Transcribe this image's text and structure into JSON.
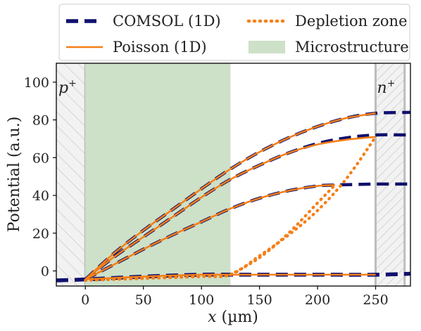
{
  "chart_data": {
    "type": "line",
    "xlabel": "x (µm)",
    "ylabel": "Potential (a.u.)",
    "xlim": [
      -25,
      280
    ],
    "ylim": [
      -8,
      110
    ],
    "xticks": [
      0,
      50,
      100,
      150,
      200,
      250
    ],
    "yticks": [
      0,
      20,
      40,
      60,
      80,
      100
    ],
    "grid": false,
    "legend": {
      "placement": "top, outside plot, two columns",
      "entries": [
        "COMSOL (1D)",
        "Depletion zone",
        "Poisson (1D)",
        "Microstructure"
      ]
    },
    "regions": [
      {
        "name": "p+",
        "label": "p",
        "label_sup": "+",
        "x": [
          -25,
          0
        ],
        "color": "#f2f2f2",
        "hatch": "\\"
      },
      {
        "name": "Microstructure",
        "x": [
          0,
          125
        ],
        "color": "#cde0c8",
        "hatch": ""
      },
      {
        "name": "n+",
        "label": "n",
        "label_sup": "+",
        "x": [
          250,
          275
        ],
        "color": "#f2f2f2",
        "hatch": "/"
      }
    ],
    "series": [
      {
        "name": "COMSOL (1D)",
        "color": "#10106e",
        "style": "dashed-thick",
        "x": [
          -25,
          0,
          50,
          100,
          125,
          150,
          200,
          250,
          280
        ],
        "y": [
          -5,
          -4.5,
          -3,
          -2,
          -2,
          -2,
          -2,
          -2,
          -1.5
        ]
      },
      {
        "name": "COMSOL (1D)",
        "color": "#10106e",
        "style": "dashed",
        "x": [
          0,
          25,
          50,
          75,
          100,
          125,
          150,
          175,
          200,
          215,
          250,
          280
        ],
        "y": [
          -4.5,
          3.5,
          11.5,
          19,
          26,
          33,
          38.5,
          42.5,
          45,
          45.5,
          46,
          46
        ]
      },
      {
        "name": "COMSOL (1D)",
        "color": "#10106e",
        "style": "dashed",
        "x": [
          0,
          25,
          50,
          75,
          100,
          125,
          150,
          175,
          200,
          225,
          250,
          280
        ],
        "y": [
          -4.5,
          7.5,
          18,
          28.5,
          39,
          48.5,
          56,
          62.5,
          67.5,
          70.5,
          72,
          72
        ]
      },
      {
        "name": "COMSOL (1D)",
        "color": "#10106e",
        "style": "dashed",
        "x": [
          0,
          25,
          50,
          75,
          100,
          125,
          150,
          175,
          200,
          225,
          250,
          280
        ],
        "y": [
          -4.5,
          9.5,
          21.5,
          32.5,
          43.5,
          54,
          63,
          70.5,
          76.5,
          81,
          83.5,
          84
        ]
      },
      {
        "name": "Poisson (1D)",
        "color": "#f57f17",
        "style": "solid",
        "x": [
          0,
          50,
          100,
          125,
          150,
          200,
          250
        ],
        "y": [
          -4.5,
          -3,
          -2,
          -2,
          -2,
          -2,
          -2
        ]
      },
      {
        "name": "Poisson (1D)",
        "color": "#f57f17",
        "style": "solid",
        "x": [
          0,
          25,
          50,
          75,
          100,
          125,
          150,
          175,
          200,
          215
        ],
        "y": [
          -4.5,
          3.5,
          11.5,
          19,
          26,
          33,
          38.5,
          42.5,
          45,
          45.5
        ]
      },
      {
        "name": "Poisson (1D)",
        "color": "#f57f17",
        "style": "solid",
        "x": [
          0,
          25,
          50,
          75,
          100,
          125,
          150,
          175,
          200,
          225,
          250
        ],
        "y": [
          -4.5,
          7.5,
          18,
          28.5,
          39,
          48.5,
          56,
          62.5,
          67,
          69.5,
          71
        ]
      },
      {
        "name": "Poisson (1D)",
        "color": "#f57f17",
        "style": "solid",
        "x": [
          0,
          25,
          50,
          75,
          100,
          125,
          150,
          175,
          200,
          225,
          250
        ],
        "y": [
          -4.5,
          9.5,
          21.5,
          32.5,
          43.5,
          54,
          63,
          70.5,
          76.5,
          81,
          83.5
        ]
      },
      {
        "name": "Depletion zone",
        "color": "#f57f17",
        "style": "dotted",
        "x": [
          0,
          50,
          100,
          125,
          150,
          175,
          200,
          225,
          250
        ],
        "y": [
          -5,
          -4,
          -3,
          -2,
          8,
          19,
          32,
          49,
          71
        ]
      },
      {
        "name": "Depletion zone",
        "color": "#f57f17",
        "style": "dotted",
        "x": [
          125,
          150,
          175,
          200,
          215
        ],
        "y": [
          -2,
          7,
          20,
          36,
          45.5
        ]
      }
    ]
  }
}
